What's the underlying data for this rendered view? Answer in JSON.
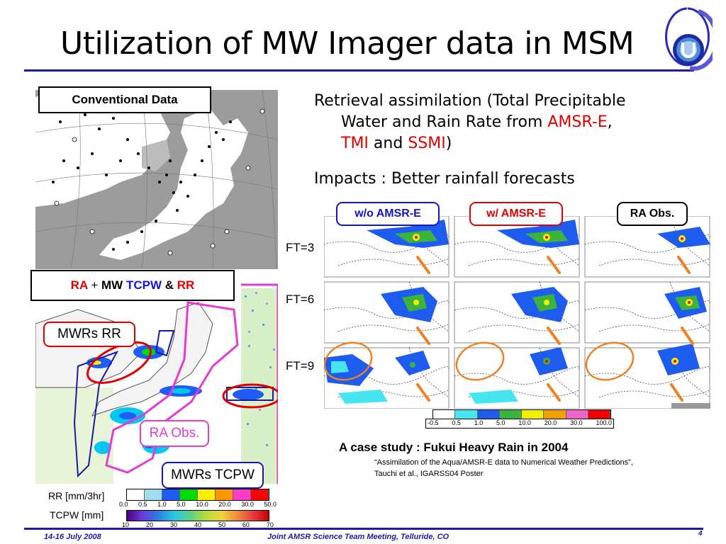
{
  "slide": {
    "title": "Utilization of MW Imager data in MSM",
    "page_number": "4"
  },
  "left_panel": {
    "conventional_label": "Conventional Data",
    "ra_label_parts": [
      "RA",
      "+",
      "MW",
      "TCPW",
      "&",
      "RR"
    ],
    "callouts": {
      "mwrs_rr": "MWRs RR",
      "ra_obs": "RA Obs.",
      "mwrs_tcpw": "MWRs TCPW"
    },
    "legend": {
      "rr_label": "RR [mm/3hr]",
      "tcpw_label": "TCPW [mm]",
      "rr_ticks": [
        "0.0",
        "0.5",
        "1.0",
        "5.0",
        "10.0",
        "20.0",
        "30.0",
        "50.0"
      ],
      "tcpw_ticks": [
        "10",
        "20",
        "30",
        "40",
        "50",
        "60",
        "70"
      ],
      "rr_colors": [
        "#ffffff",
        "#9edcf0",
        "#1f5cf5",
        "#00dc00",
        "#fff000",
        "#ff9600",
        "#ff3cc8",
        "#ff0000"
      ]
    }
  },
  "right_panel": {
    "bullet1_line1": "Retrieval assimilation (Total Precipitable",
    "bullet1_line2_pre": "Water and Rain Rate from ",
    "bullet1_amsr": "AMSR-E",
    "bullet1_comma": ",",
    "bullet1_tmi": "TMI",
    "bullet1_and": " and ",
    "bullet1_ssmi": "SSMI",
    "bullet1_close": ")",
    "bullet2": "Impacts : Better rainfall forecasts",
    "column_labels": {
      "without": "w/o AMSR-E",
      "with": "w/ AMSR-E",
      "obs": "RA Obs."
    },
    "row_labels": [
      "FT=3",
      "FT=6",
      "FT=9"
    ],
    "colorbar": {
      "ticks": [
        "-0.5",
        "0.5",
        "1.0",
        "5.0",
        "10.0",
        "20.0",
        "30.0",
        "100.0"
      ],
      "colors": [
        "#ffffff",
        "#46e6f0",
        "#1e5cf0",
        "#3cb43c",
        "#f0f000",
        "#f0a000",
        "#f064c8",
        "#f00000"
      ]
    },
    "case_study": "A case study : Fukui Heavy Rain in 2004",
    "citation_line1": "“Assimilation of the Aqua/AMSR-E data to Numerical Weather Predictions”,",
    "citation_line2": "Tauchi et al., IGARSS04 Poster"
  },
  "footer": {
    "date": "14-16 July 2008",
    "meeting": "Joint AMSR Science Team Meeting, Telluride, CO"
  },
  "colors": {
    "accent_blue": "#1f1aa0",
    "label_red": "#e10000",
    "callout_magenta": "#e23cd2",
    "callout_orange": "#f08020"
  }
}
